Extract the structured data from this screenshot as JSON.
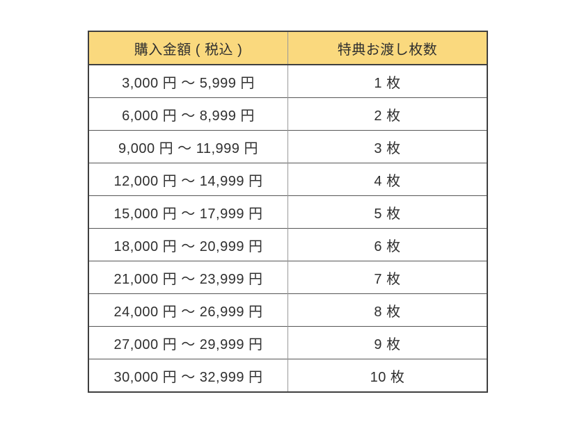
{
  "page": {
    "background_color": "#ffffff"
  },
  "table": {
    "title_semantic": "purchase-amount-bonus-table",
    "colors": {
      "header_background": "#fad97e",
      "text": "#2f2f2f",
      "outer_border": "#3f3f3f",
      "row_border": "#555555",
      "column_divider": "#999999"
    },
    "header": {
      "amount_label": "購入金額 ( 税込 )",
      "count_label": "特典お渡し枚数"
    },
    "rows": [
      {
        "amount_range": "3,000 円 〜 5,999 円",
        "bonus_count": "1 枚"
      },
      {
        "amount_range": "6,000 円 〜 8,999 円",
        "bonus_count": "2 枚"
      },
      {
        "amount_range": "9,000 円 〜 11,999 円",
        "bonus_count": "3 枚"
      },
      {
        "amount_range": "12,000 円 〜 14,999 円",
        "bonus_count": "4 枚"
      },
      {
        "amount_range": "15,000 円 〜 17,999 円",
        "bonus_count": "5 枚"
      },
      {
        "amount_range": "18,000 円 〜 20,999 円",
        "bonus_count": "6 枚"
      },
      {
        "amount_range": "21,000 円 〜 23,999 円",
        "bonus_count": "7 枚"
      },
      {
        "amount_range": "24,000 円 〜 26,999 円",
        "bonus_count": "8 枚"
      },
      {
        "amount_range": "27,000 円 〜 29,999 円",
        "bonus_count": "9 枚"
      },
      {
        "amount_range": "30,000 円 〜 32,999 円",
        "bonus_count": "10 枚"
      }
    ]
  },
  "chart_data": {
    "type": "table",
    "columns": [
      "購入金額 ( 税込 )",
      "特典お渡し枚数"
    ],
    "rows": [
      [
        "3,000 円 〜 5,999 円",
        "1 枚"
      ],
      [
        "6,000 円 〜 8,999 円",
        "2 枚"
      ],
      [
        "9,000 円 〜 11,999 円",
        "3 枚"
      ],
      [
        "12,000 円 〜 14,999 円",
        "4 枚"
      ],
      [
        "15,000 円 〜 17,999 円",
        "5 枚"
      ],
      [
        "18,000 円 〜 20,999 円",
        "6 枚"
      ],
      [
        "21,000 円 〜 23,999 円",
        "7 枚"
      ],
      [
        "24,000 円 〜 26,999 円",
        "8 枚"
      ],
      [
        "27,000 円 〜 29,999 円",
        "9 枚"
      ],
      [
        "30,000 円 〜 32,999 円",
        "10 枚"
      ]
    ]
  }
}
